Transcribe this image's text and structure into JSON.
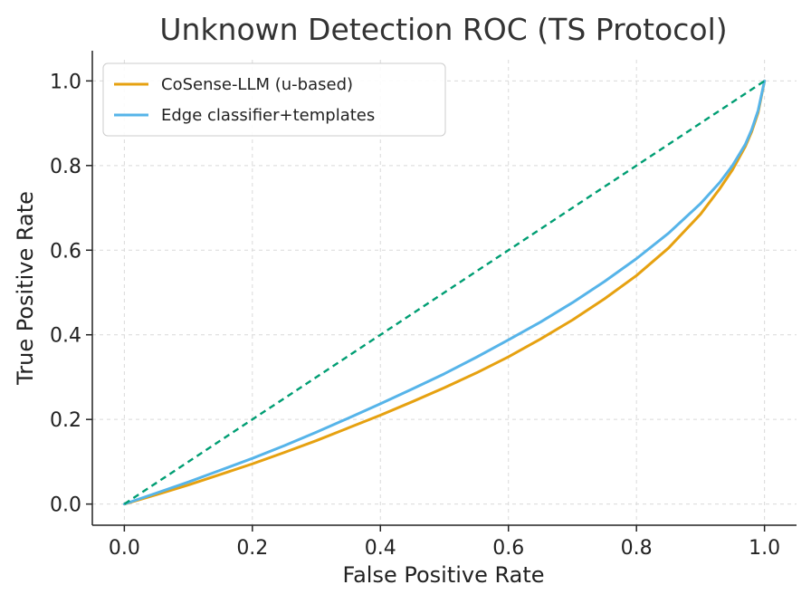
{
  "chart_data": {
    "type": "line",
    "title": "Unknown Detection ROC (TS Protocol)",
    "xlabel": "False Positive Rate",
    "ylabel": "True Positive Rate",
    "xlim": [
      -0.05,
      1.05
    ],
    "ylim": [
      -0.05,
      1.05
    ],
    "xticks": [
      "0.0",
      "0.2",
      "0.4",
      "0.6",
      "0.8",
      "1.0"
    ],
    "yticks": [
      "0.0",
      "0.2",
      "0.4",
      "0.6",
      "0.8",
      "1.0"
    ],
    "grid": true,
    "legend_position": "upper-left",
    "series": [
      {
        "name": "CoSense-LLM (u-based)",
        "color": "#E6A110",
        "style": "solid",
        "x": [
          0,
          0.05,
          0.1,
          0.15,
          0.2,
          0.25,
          0.3,
          0.35,
          0.4,
          0.45,
          0.5,
          0.55,
          0.6,
          0.65,
          0.7,
          0.75,
          0.8,
          0.85,
          0.9,
          0.93,
          0.95,
          0.97,
          0.98,
          0.99,
          1.0
        ],
        "y": [
          0,
          0.022,
          0.045,
          0.07,
          0.095,
          0.122,
          0.15,
          0.18,
          0.21,
          0.242,
          0.275,
          0.31,
          0.348,
          0.39,
          0.435,
          0.485,
          0.54,
          0.605,
          0.685,
          0.745,
          0.79,
          0.845,
          0.88,
          0.925,
          1.0
        ]
      },
      {
        "name": "Edge classifier+templates",
        "color": "#56B4E9",
        "style": "solid",
        "x": [
          0,
          0.05,
          0.1,
          0.15,
          0.2,
          0.25,
          0.3,
          0.35,
          0.4,
          0.45,
          0.5,
          0.55,
          0.6,
          0.65,
          0.7,
          0.75,
          0.8,
          0.85,
          0.9,
          0.93,
          0.95,
          0.97,
          0.98,
          0.99,
          1.0
        ],
        "y": [
          0,
          0.026,
          0.052,
          0.08,
          0.108,
          0.138,
          0.17,
          0.203,
          0.237,
          0.272,
          0.308,
          0.347,
          0.388,
          0.43,
          0.476,
          0.526,
          0.58,
          0.64,
          0.71,
          0.76,
          0.8,
          0.85,
          0.885,
          0.93,
          1.0
        ]
      },
      {
        "name": "",
        "color": "#009E73",
        "style": "dashed",
        "x": [
          0,
          1
        ],
        "y": [
          0,
          1
        ]
      }
    ]
  }
}
